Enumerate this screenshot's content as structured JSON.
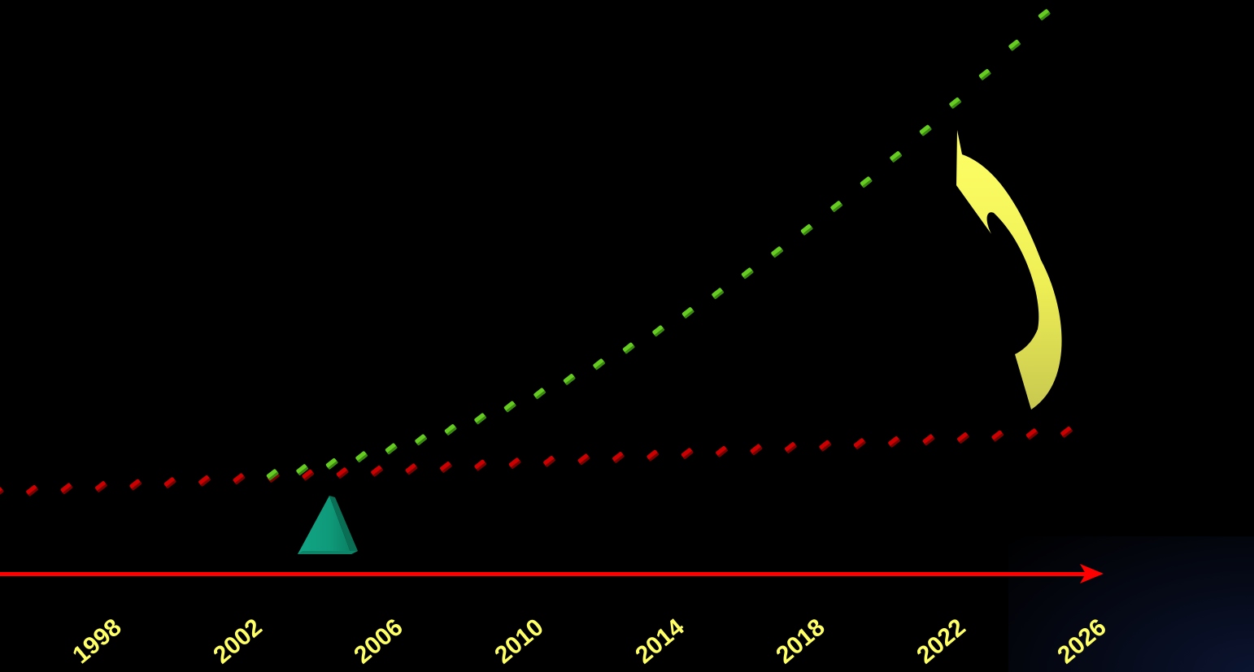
{
  "timeline": {
    "years": [
      "1998",
      "2002",
      "2006",
      "2010",
      "2014",
      "2018",
      "2022",
      "2026"
    ],
    "axis_color": "#ff0000",
    "label_color": "#ffff66"
  },
  "series": [
    {
      "color": "#cc0000",
      "shape": "red-dot-trend"
    },
    {
      "color": "#66cc22",
      "shape": "green-dot-trend"
    }
  ],
  "marker": {
    "color": "#119977",
    "shape": "triangle"
  },
  "arrow": {
    "color": "#ffff66",
    "shape": "curved-arrow-up"
  },
  "hidden_text": ""
}
